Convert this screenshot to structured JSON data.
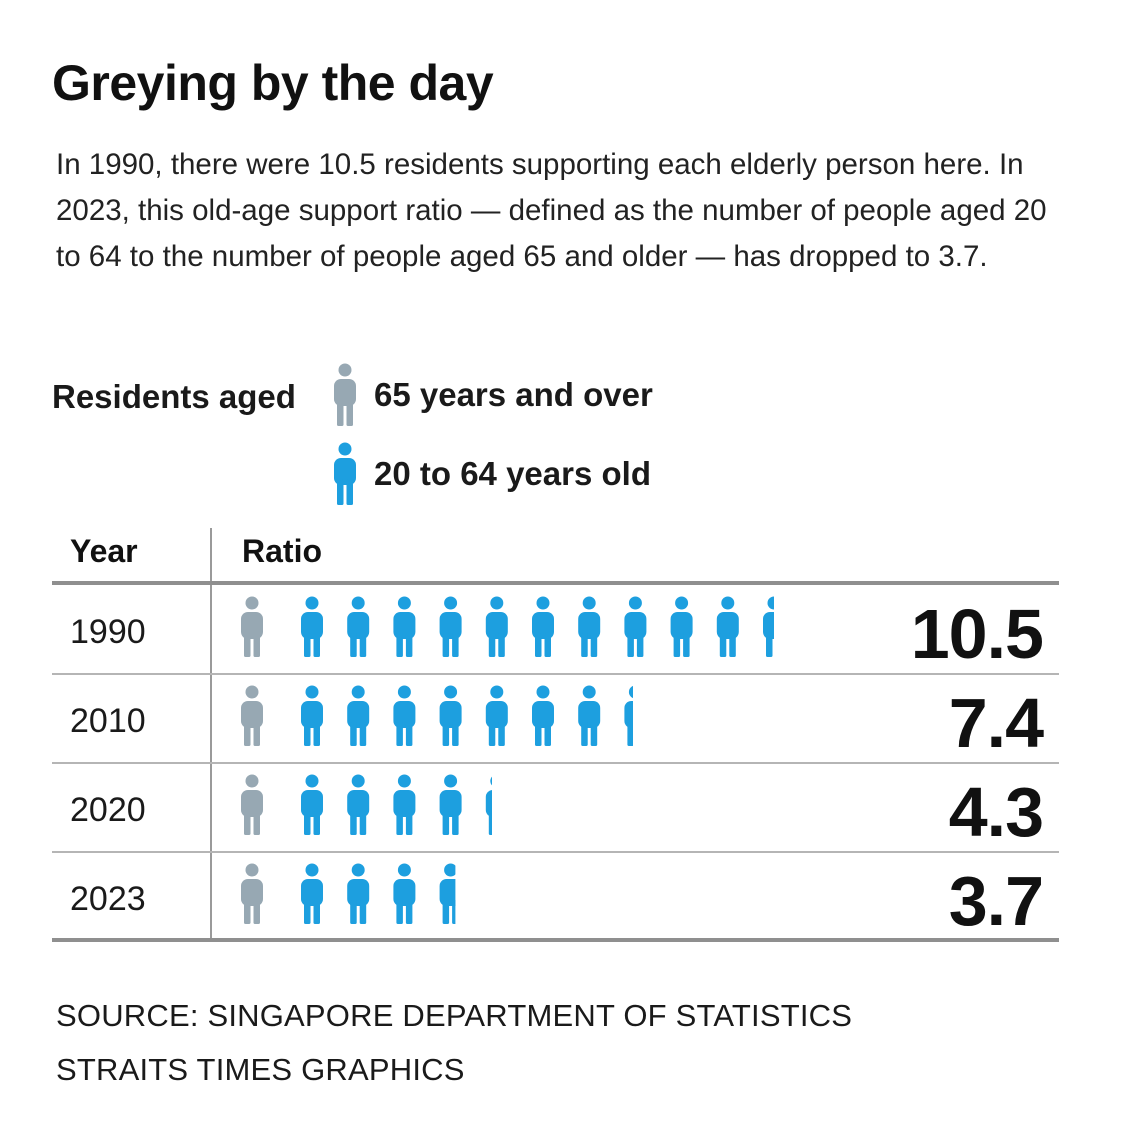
{
  "header": {
    "title": "Greying by the day",
    "subtitle": "In 1990, there were 10.5 residents supporting each elderly person here. In 2023, this old-age support ratio — defined as the number of people aged 20 to 64 to the number of people aged 65 and older — has dropped to 3.7."
  },
  "legend": {
    "label": "Residents aged",
    "elderly_label": "65 years and over",
    "working_label": "20 to 64 years old",
    "elderly_icon": "person-icon",
    "working_icon": "person-icon"
  },
  "colors": {
    "elderly": "#97a8b3",
    "working": "#1d9fdf",
    "rule_strong": "#8f8f8f",
    "rule_light": "#b5b5b5",
    "text": "#111111"
  },
  "chart_data": {
    "type": "table",
    "title": "Greying by the day",
    "columns": [
      "Year",
      "Ratio"
    ],
    "xlabel": "",
    "ylabel": "",
    "series": [
      {
        "name": "20 to 64 years old per resident aged 65 years and over",
        "values": [
          10.5,
          7.4,
          4.3,
          3.7
        ]
      }
    ],
    "categories": [
      "1990",
      "2010",
      "2020",
      "2023"
    ],
    "rows": [
      {
        "year": "1990",
        "ratio": 10.5,
        "ratio_label": "10.5"
      },
      {
        "year": "2010",
        "ratio": 7.4,
        "ratio_label": "7.4"
      },
      {
        "year": "2020",
        "ratio": 4.3,
        "ratio_label": "4.3"
      },
      {
        "year": "2023",
        "ratio": 3.7,
        "ratio_label": "3.7"
      }
    ]
  },
  "footer": {
    "source": "SOURCE: SINGAPORE DEPARTMENT OF STATISTICS",
    "credit": "STRAITS TIMES GRAPHICS"
  }
}
